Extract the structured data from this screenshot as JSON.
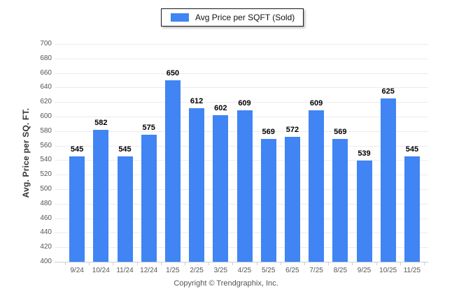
{
  "chart_data": {
    "type": "bar",
    "title": "Avg Price per SQFT (Sold)",
    "categories": [
      "9/24",
      "10/24",
      "11/24",
      "12/24",
      "1/25",
      "2/25",
      "3/25",
      "4/25",
      "5/25",
      "6/25",
      "7/25",
      "8/25",
      "9/25",
      "10/25",
      "11/25"
    ],
    "values": [
      545,
      582,
      545,
      575,
      650,
      612,
      602,
      609,
      569,
      572,
      609,
      569,
      539,
      625,
      545
    ],
    "xlabel": "",
    "ylabel": "Avg. Price per SQ. FT.",
    "ylim": [
      400,
      700
    ],
    "ytick_step": 20,
    "grid": "horizontal",
    "legend_position": "top-center",
    "bar_color": "#4184F4",
    "value_labels_shown": true
  },
  "footer": {
    "copyright": "Copyright © Trendgraphix, Inc."
  }
}
